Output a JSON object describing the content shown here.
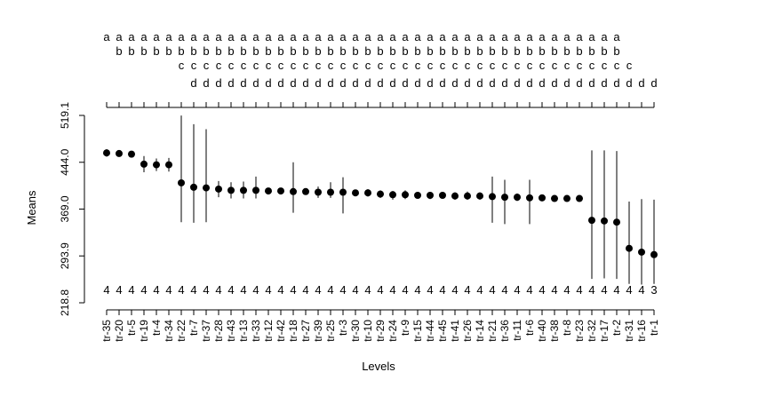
{
  "chart_data": {
    "type": "scatter",
    "xlabel": "Levels",
    "ylabel": "Means",
    "y_ticks": [
      "218.8",
      "293.9",
      "369.0",
      "444.0",
      "519.1"
    ],
    "ylim": [
      218.8,
      519.1
    ],
    "grid": false,
    "points": [
      {
        "level": "tr-35",
        "mean": 459.0,
        "lo": 453.0,
        "hi": 465.0,
        "n": "4",
        "groups": "a"
      },
      {
        "level": "tr-20",
        "mean": 458.0,
        "lo": 455.0,
        "hi": 461.0,
        "n": "4",
        "groups": "ab"
      },
      {
        "level": "tr-5",
        "mean": 457.0,
        "lo": 455.0,
        "hi": 459.0,
        "n": "4",
        "groups": "ab"
      },
      {
        "level": "tr-19",
        "mean": 441.0,
        "lo": 428.0,
        "hi": 454.0,
        "n": "4",
        "groups": "ab"
      },
      {
        "level": "tr-4",
        "mean": 440.0,
        "lo": 430.0,
        "hi": 450.0,
        "n": "4",
        "groups": "ab"
      },
      {
        "level": "tr-34",
        "mean": 440.0,
        "lo": 429.0,
        "hi": 451.0,
        "n": "4",
        "groups": "ab"
      },
      {
        "level": "tr-22",
        "mean": 411.0,
        "lo": 348.0,
        "hi": 519.0,
        "n": "4",
        "groups": "abc"
      },
      {
        "level": "tr-7",
        "mean": 404.0,
        "lo": 347.0,
        "hi": 505.0,
        "n": "4",
        "groups": "abcd"
      },
      {
        "level": "tr-37",
        "mean": 403.0,
        "lo": 348.0,
        "hi": 497.0,
        "n": "4",
        "groups": "abcd"
      },
      {
        "level": "tr-28",
        "mean": 401.0,
        "lo": 388.0,
        "hi": 414.0,
        "n": "4",
        "groups": "abcd"
      },
      {
        "level": "tr-43",
        "mean": 399.0,
        "lo": 386.0,
        "hi": 412.0,
        "n": "4",
        "groups": "abcd"
      },
      {
        "level": "tr-13",
        "mean": 399.0,
        "lo": 386.0,
        "hi": 413.0,
        "n": "4",
        "groups": "abcd"
      },
      {
        "level": "tr-33",
        "mean": 399.0,
        "lo": 386.0,
        "hi": 421.0,
        "n": "4",
        "groups": "abcd"
      },
      {
        "level": "tr-12",
        "mean": 398.0,
        "lo": 394.0,
        "hi": 402.0,
        "n": "4",
        "groups": "abcd"
      },
      {
        "level": "tr-42",
        "mean": 398.0,
        "lo": 394.0,
        "hi": 402.0,
        "n": "4",
        "groups": "abcd"
      },
      {
        "level": "tr-18",
        "mean": 397.0,
        "lo": 363.0,
        "hi": 444.0,
        "n": "4",
        "groups": "abcd"
      },
      {
        "level": "tr-27",
        "mean": 397.0,
        "lo": 392.0,
        "hi": 402.0,
        "n": "4",
        "groups": "abcd"
      },
      {
        "level": "tr-39",
        "mean": 396.0,
        "lo": 387.0,
        "hi": 405.0,
        "n": "4",
        "groups": "abcd"
      },
      {
        "level": "tr-25",
        "mean": 396.0,
        "lo": 387.0,
        "hi": 412.0,
        "n": "4",
        "groups": "abcd"
      },
      {
        "level": "tr-3",
        "mean": 396.0,
        "lo": 362.0,
        "hi": 420.0,
        "n": "4",
        "groups": "abcd"
      },
      {
        "level": "tr-30",
        "mean": 395.0,
        "lo": 391.0,
        "hi": 399.0,
        "n": "4",
        "groups": "abcd"
      },
      {
        "level": "tr-10",
        "mean": 395.0,
        "lo": 389.0,
        "hi": 401.0,
        "n": "4",
        "groups": "abcd"
      },
      {
        "level": "tr-29",
        "mean": 393.0,
        "lo": 387.0,
        "hi": 399.0,
        "n": "4",
        "groups": "abcd"
      },
      {
        "level": "tr-24",
        "mean": 392.0,
        "lo": 384.0,
        "hi": 398.0,
        "n": "4",
        "groups": "abcd"
      },
      {
        "level": "tr-9",
        "mean": 392.0,
        "lo": 385.0,
        "hi": 399.0,
        "n": "4",
        "groups": "abcd"
      },
      {
        "level": "tr-15",
        "mean": 391.0,
        "lo": 387.0,
        "hi": 395.0,
        "n": "4",
        "groups": "abcd"
      },
      {
        "level": "tr-44",
        "mean": 391.0,
        "lo": 385.0,
        "hi": 395.0,
        "n": "4",
        "groups": "abcd"
      },
      {
        "level": "tr-45",
        "mean": 391.0,
        "lo": 388.0,
        "hi": 394.0,
        "n": "4",
        "groups": "abcd"
      },
      {
        "level": "tr-41",
        "mean": 390.0,
        "lo": 384.0,
        "hi": 396.0,
        "n": "4",
        "groups": "abcd"
      },
      {
        "level": "tr-26",
        "mean": 390.0,
        "lo": 384.0,
        "hi": 397.0,
        "n": "4",
        "groups": "abcd"
      },
      {
        "level": "tr-14",
        "mean": 390.0,
        "lo": 384.0,
        "hi": 396.0,
        "n": "4",
        "groups": "abcd"
      },
      {
        "level": "tr-21",
        "mean": 389.0,
        "lo": 347.0,
        "hi": 421.0,
        "n": "4",
        "groups": "abcd"
      },
      {
        "level": "tr-36",
        "mean": 388.0,
        "lo": 345.0,
        "hi": 416.0,
        "n": "4",
        "groups": "abcd"
      },
      {
        "level": "tr-11",
        "mean": 388.0,
        "lo": 382.0,
        "hi": 394.0,
        "n": "4",
        "groups": "abcd"
      },
      {
        "level": "tr-6",
        "mean": 387.0,
        "lo": 345.0,
        "hi": 416.0,
        "n": "4",
        "groups": "abcd"
      },
      {
        "level": "tr-40",
        "mean": 387.0,
        "lo": 382.0,
        "hi": 392.0,
        "n": "4",
        "groups": "abcd"
      },
      {
        "level": "tr-38",
        "mean": 386.0,
        "lo": 381.0,
        "hi": 391.0,
        "n": "4",
        "groups": "abcd"
      },
      {
        "level": "tr-8",
        "mean": 386.0,
        "lo": 382.0,
        "hi": 390.0,
        "n": "4",
        "groups": "abcd"
      },
      {
        "level": "tr-23",
        "mean": 386.0,
        "lo": 381.0,
        "hi": 391.0,
        "n": "4",
        "groups": "abcd"
      },
      {
        "level": "tr-32",
        "mean": 351.0,
        "lo": 257.0,
        "hi": 463.0,
        "n": "4",
        "groups": "abcd"
      },
      {
        "level": "tr-17",
        "mean": 350.0,
        "lo": 258.0,
        "hi": 463.0,
        "n": "4",
        "groups": "abcd"
      },
      {
        "level": "tr-2",
        "mean": 348.0,
        "lo": 257.0,
        "hi": 462.0,
        "n": "4",
        "groups": "abcd"
      },
      {
        "level": "tr-31",
        "mean": 306.0,
        "lo": 249.0,
        "hi": 381.0,
        "n": "4",
        "groups": "cd"
      },
      {
        "level": "tr-16",
        "mean": 300.0,
        "lo": 248.0,
        "hi": 385.0,
        "n": "4",
        "groups": "d"
      },
      {
        "level": "tr-1",
        "mean": 296.0,
        "lo": 249.0,
        "hi": 384.0,
        "n": "3",
        "groups": "d"
      }
    ]
  }
}
